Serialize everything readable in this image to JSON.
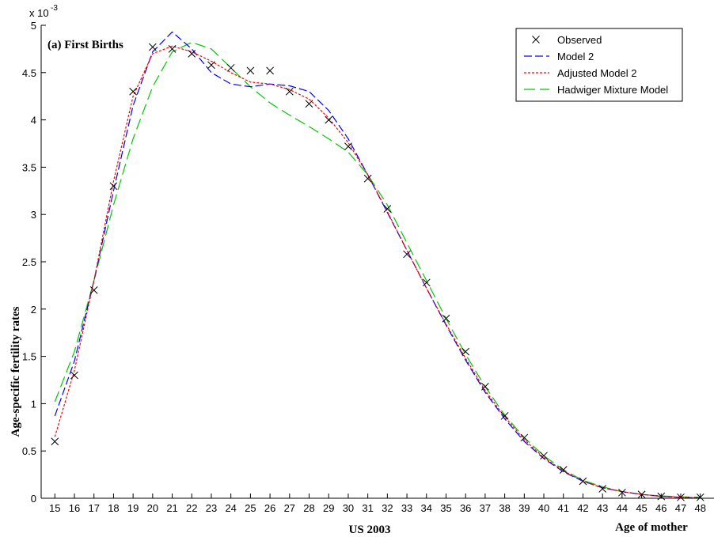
{
  "chart_data": {
    "type": "line",
    "title": "(a) First Births",
    "xlabel": "Age of mother",
    "caption": "US 2003",
    "ylabel": "Age-specific fertility rates",
    "y_exponent_label": "x 10",
    "y_exponent": "-3",
    "x": [
      15,
      16,
      17,
      18,
      19,
      20,
      21,
      22,
      23,
      24,
      25,
      26,
      27,
      28,
      29,
      30,
      31,
      32,
      33,
      34,
      35,
      36,
      37,
      38,
      39,
      40,
      41,
      42,
      43,
      44,
      45,
      46,
      47,
      48
    ],
    "xlim": [
      14.3,
      48.7
    ],
    "ylim": [
      0,
      5
    ],
    "y_ticks": [
      "0",
      "0.5",
      "1",
      "1.5",
      "2",
      "2.5",
      "3",
      "3.5",
      "4",
      "4.5",
      "5"
    ],
    "grid": false,
    "legend_position": "top-right",
    "series": [
      {
        "name": "Observed",
        "style": "marker-x",
        "color": "#000000",
        "values": [
          0.6,
          1.3,
          2.2,
          3.3,
          4.3,
          4.77,
          4.75,
          4.7,
          4.58,
          4.55,
          4.52,
          4.52,
          4.3,
          4.17,
          4.0,
          3.72,
          3.38,
          3.06,
          2.58,
          2.28,
          1.9,
          1.55,
          1.18,
          0.87,
          0.64,
          0.45,
          0.3,
          0.18,
          0.1,
          0.06,
          0.04,
          0.02,
          0.01,
          0.01
        ]
      },
      {
        "name": "Model 2",
        "style": "dashed",
        "color": "#0000ff",
        "values": [
          0.87,
          1.45,
          2.3,
          3.25,
          4.15,
          4.72,
          4.93,
          4.75,
          4.5,
          4.38,
          4.35,
          4.38,
          4.36,
          4.3,
          4.1,
          3.8,
          3.42,
          3.02,
          2.62,
          2.22,
          1.83,
          1.46,
          1.12,
          0.84,
          0.6,
          0.42,
          0.28,
          0.18,
          0.11,
          0.07,
          0.04,
          0.02,
          0.01,
          0.005
        ]
      },
      {
        "name": "Adjusted Model 2",
        "style": "dotted",
        "color": "#ff0000",
        "values": [
          0.65,
          1.35,
          2.3,
          3.35,
          4.25,
          4.7,
          4.78,
          4.72,
          4.62,
          4.5,
          4.4,
          4.38,
          4.32,
          4.22,
          4.02,
          3.76,
          3.42,
          3.03,
          2.62,
          2.22,
          1.84,
          1.48,
          1.14,
          0.86,
          0.62,
          0.43,
          0.29,
          0.18,
          0.11,
          0.07,
          0.04,
          0.02,
          0.01,
          0.005
        ]
      },
      {
        "name": "Hadwiger Mixture Model",
        "style": "long-dash",
        "color": "#00c800",
        "values": [
          1.02,
          1.55,
          2.3,
          3.1,
          3.8,
          4.35,
          4.72,
          4.82,
          4.75,
          4.55,
          4.35,
          4.18,
          4.05,
          3.93,
          3.8,
          3.66,
          3.42,
          3.1,
          2.7,
          2.3,
          1.9,
          1.52,
          1.18,
          0.88,
          0.64,
          0.45,
          0.3,
          0.19,
          0.12,
          0.07,
          0.04,
          0.025,
          0.015,
          0.01
        ]
      }
    ]
  }
}
